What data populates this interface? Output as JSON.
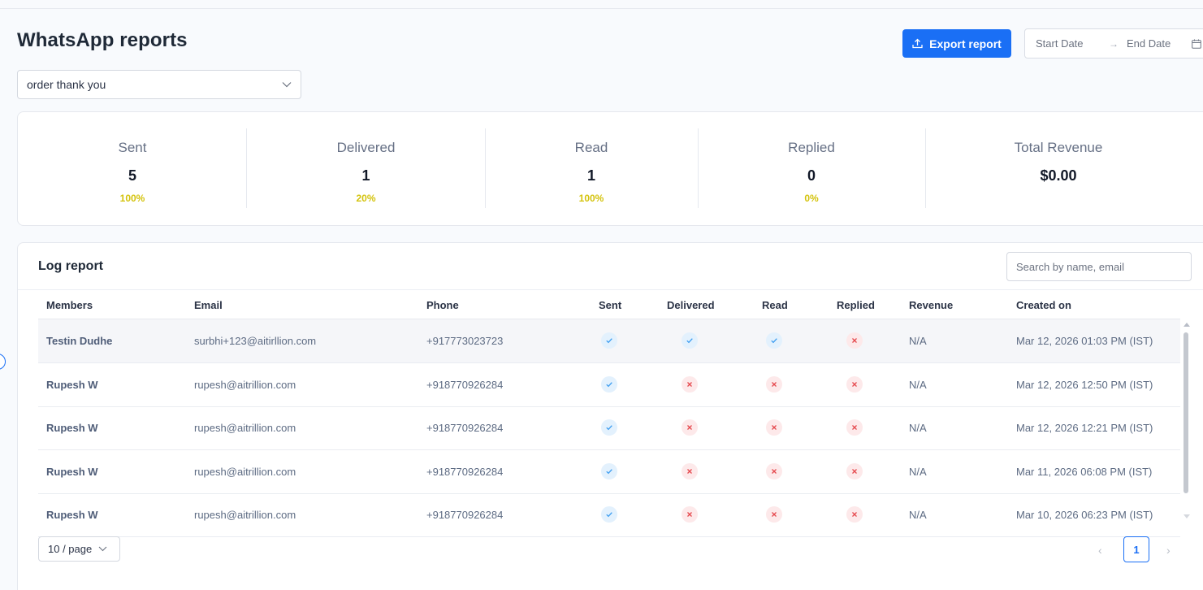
{
  "header": {
    "title": "WhatsApp reports",
    "export_label": "Export report",
    "date_start_placeholder": "Start Date",
    "date_arrow": "→",
    "date_end_placeholder": "End Date"
  },
  "template_select": {
    "value": "order thank you"
  },
  "stats": [
    {
      "label": "Sent",
      "value": "5",
      "pct": "100%"
    },
    {
      "label": "Delivered",
      "value": "1",
      "pct": "20%"
    },
    {
      "label": "Read",
      "value": "1",
      "pct": "100%"
    },
    {
      "label": "Replied",
      "value": "0",
      "pct": "0%"
    },
    {
      "label": "Total Revenue",
      "value": "$0.00"
    }
  ],
  "log": {
    "title": "Log report",
    "search_placeholder": "Search by name, email",
    "columns": [
      "Members",
      "Email",
      "Phone",
      "Sent",
      "Delivered",
      "Read",
      "Replied",
      "Revenue",
      "Created on"
    ],
    "rows": [
      {
        "member": "Testin Dudhe",
        "email": "surbhi+123@aitirllion.com",
        "phone": "+917773023723",
        "sent": true,
        "delivered": true,
        "read": true,
        "replied": false,
        "revenue": "N/A",
        "created": "Mar 12, 2026 01:03 PM (IST)"
      },
      {
        "member": "Rupesh W",
        "email": "rupesh@aitrillion.com",
        "phone": "+918770926284",
        "sent": true,
        "delivered": false,
        "read": false,
        "replied": false,
        "revenue": "N/A",
        "created": "Mar 12, 2026 12:50 PM (IST)"
      },
      {
        "member": "Rupesh W",
        "email": "rupesh@aitrillion.com",
        "phone": "+918770926284",
        "sent": true,
        "delivered": false,
        "read": false,
        "replied": false,
        "revenue": "N/A",
        "created": "Mar 12, 2026 12:21 PM (IST)"
      },
      {
        "member": "Rupesh W",
        "email": "rupesh@aitrillion.com",
        "phone": "+918770926284",
        "sent": true,
        "delivered": false,
        "read": false,
        "replied": false,
        "revenue": "N/A",
        "created": "Mar 11, 2026 06:08 PM (IST)"
      },
      {
        "member": "Rupesh W",
        "email": "rupesh@aitrillion.com",
        "phone": "+918770926284",
        "sent": true,
        "delivered": false,
        "read": false,
        "replied": false,
        "revenue": "N/A",
        "created": "Mar 10, 2026 06:23 PM (IST)"
      }
    ]
  },
  "pagination": {
    "page_size_label": "10 / page",
    "prev": "‹",
    "current": "1",
    "next": "›"
  },
  "colors": {
    "accent": "#1a6ff5",
    "percent": "#d4c30d",
    "success_bg": "#e3f1fd",
    "fail_bg": "#fde9ea",
    "fail_icon": "#e5484d"
  }
}
